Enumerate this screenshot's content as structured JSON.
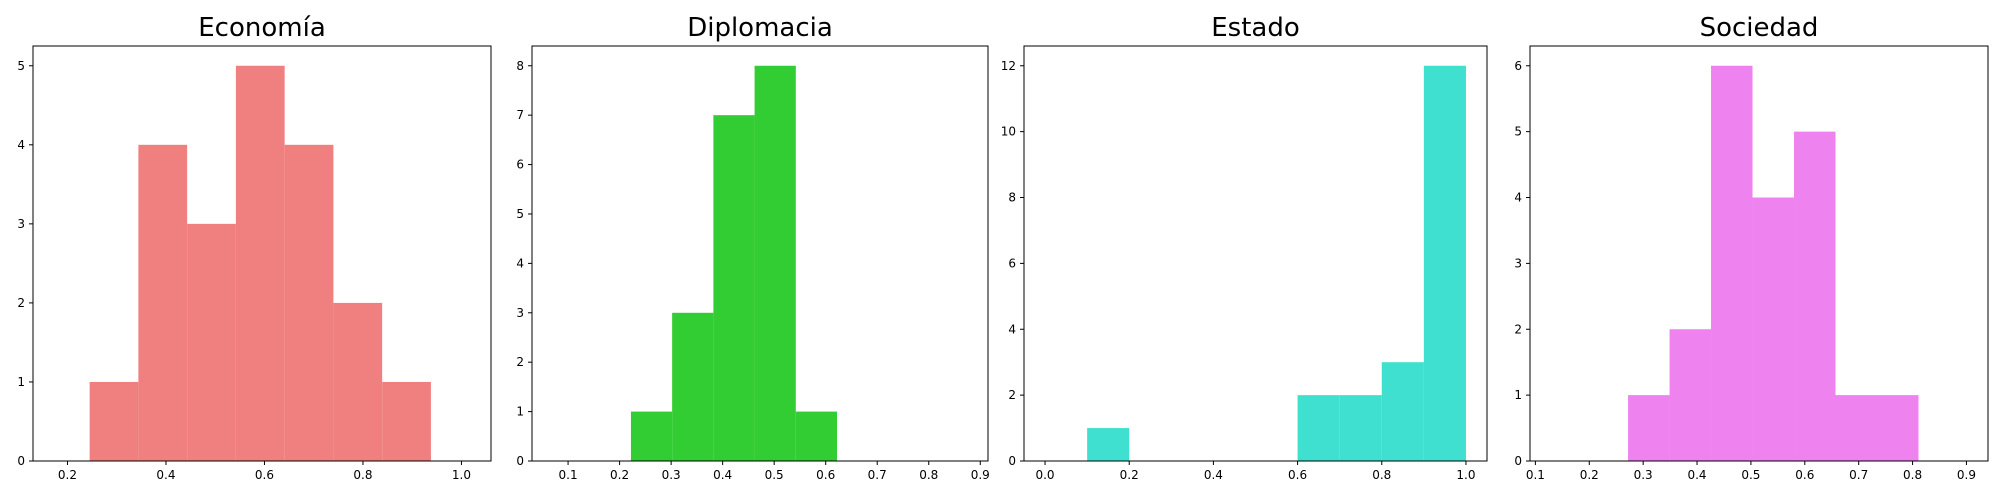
{
  "chart_data": [
    {
      "type": "bar",
      "title": "Economía",
      "color": "#F08080",
      "xlim": [
        0.13,
        1.06
      ],
      "ylim": [
        0,
        5.25
      ],
      "xticks": [
        0.2,
        0.4,
        0.6,
        0.8,
        1.0
      ],
      "xtick_labels": [
        "0.2",
        "0.4",
        "0.6",
        "0.8",
        "1.0"
      ],
      "yticks": [
        0,
        1,
        2,
        3,
        4,
        5
      ],
      "ytick_labels": [
        "0",
        "1",
        "2",
        "3",
        "4",
        "5"
      ],
      "bins": [
        {
          "x0": 0.245,
          "x1": 0.344,
          "count": 1
        },
        {
          "x0": 0.344,
          "x1": 0.443,
          "count": 4
        },
        {
          "x0": 0.443,
          "x1": 0.542,
          "count": 3
        },
        {
          "x0": 0.542,
          "x1": 0.641,
          "count": 5
        },
        {
          "x0": 0.641,
          "x1": 0.74,
          "count": 4
        },
        {
          "x0": 0.74,
          "x1": 0.839,
          "count": 2
        },
        {
          "x0": 0.839,
          "x1": 0.938,
          "count": 1
        }
      ]
    },
    {
      "type": "bar",
      "title": "Diplomacia",
      "color": "#32CD32",
      "xlim": [
        0.03,
        0.915
      ],
      "ylim": [
        0,
        8.4
      ],
      "xticks": [
        0.1,
        0.2,
        0.3,
        0.4,
        0.5,
        0.6,
        0.7,
        0.8,
        0.9
      ],
      "xtick_labels": [
        "0.1",
        "0.2",
        "0.3",
        "0.4",
        "0.5",
        "0.6",
        "0.7",
        "0.8",
        "0.9"
      ],
      "yticks": [
        0,
        1,
        2,
        3,
        4,
        5,
        6,
        7,
        8
      ],
      "ytick_labels": [
        "0",
        "1",
        "2",
        "3",
        "4",
        "5",
        "6",
        "7",
        "8"
      ],
      "bins": [
        {
          "x0": 0.222,
          "x1": 0.302,
          "count": 1
        },
        {
          "x0": 0.302,
          "x1": 0.382,
          "count": 3
        },
        {
          "x0": 0.382,
          "x1": 0.462,
          "count": 7
        },
        {
          "x0": 0.462,
          "x1": 0.542,
          "count": 8
        },
        {
          "x0": 0.542,
          "x1": 0.622,
          "count": 1
        }
      ]
    },
    {
      "type": "bar",
      "title": "Estado",
      "color": "#40E0D0",
      "xlim": [
        -0.05,
        1.05
      ],
      "ylim": [
        0,
        12.6
      ],
      "xticks": [
        0.0,
        0.2,
        0.4,
        0.6,
        0.8,
        1.0
      ],
      "xtick_labels": [
        "0.0",
        "0.2",
        "0.4",
        "0.6",
        "0.8",
        "1.0"
      ],
      "yticks": [
        0,
        2,
        4,
        6,
        8,
        10,
        12
      ],
      "ytick_labels": [
        "0",
        "2",
        "4",
        "6",
        "8",
        "10",
        "12"
      ],
      "bins": [
        {
          "x0": 0.1,
          "x1": 0.2,
          "count": 1
        },
        {
          "x0": 0.6,
          "x1": 0.7,
          "count": 2
        },
        {
          "x0": 0.7,
          "x1": 0.8,
          "count": 2
        },
        {
          "x0": 0.8,
          "x1": 0.9,
          "count": 3
        },
        {
          "x0": 0.9,
          "x1": 1.0,
          "count": 12
        }
      ]
    },
    {
      "type": "bar",
      "title": "Sociedad",
      "color": "#EE82EE",
      "xlim": [
        0.09,
        0.94
      ],
      "ylim": [
        0,
        6.3
      ],
      "xticks": [
        0.1,
        0.2,
        0.3,
        0.4,
        0.5,
        0.6,
        0.7,
        0.8,
        0.9
      ],
      "xtick_labels": [
        "0.1",
        "0.2",
        "0.3",
        "0.4",
        "0.5",
        "0.6",
        "0.7",
        "0.8",
        "0.9"
      ],
      "yticks": [
        0,
        1,
        2,
        3,
        4,
        5,
        6
      ],
      "ytick_labels": [
        "0",
        "1",
        "2",
        "3",
        "4",
        "5",
        "6"
      ],
      "bins": [
        {
          "x0": 0.272,
          "x1": 0.349,
          "count": 1
        },
        {
          "x0": 0.349,
          "x1": 0.426,
          "count": 2
        },
        {
          "x0": 0.426,
          "x1": 0.503,
          "count": 6
        },
        {
          "x0": 0.503,
          "x1": 0.58,
          "count": 4
        },
        {
          "x0": 0.58,
          "x1": 0.657,
          "count": 5
        },
        {
          "x0": 0.657,
          "x1": 0.734,
          "count": 1
        },
        {
          "x0": 0.734,
          "x1": 0.811,
          "count": 1
        }
      ]
    }
  ]
}
